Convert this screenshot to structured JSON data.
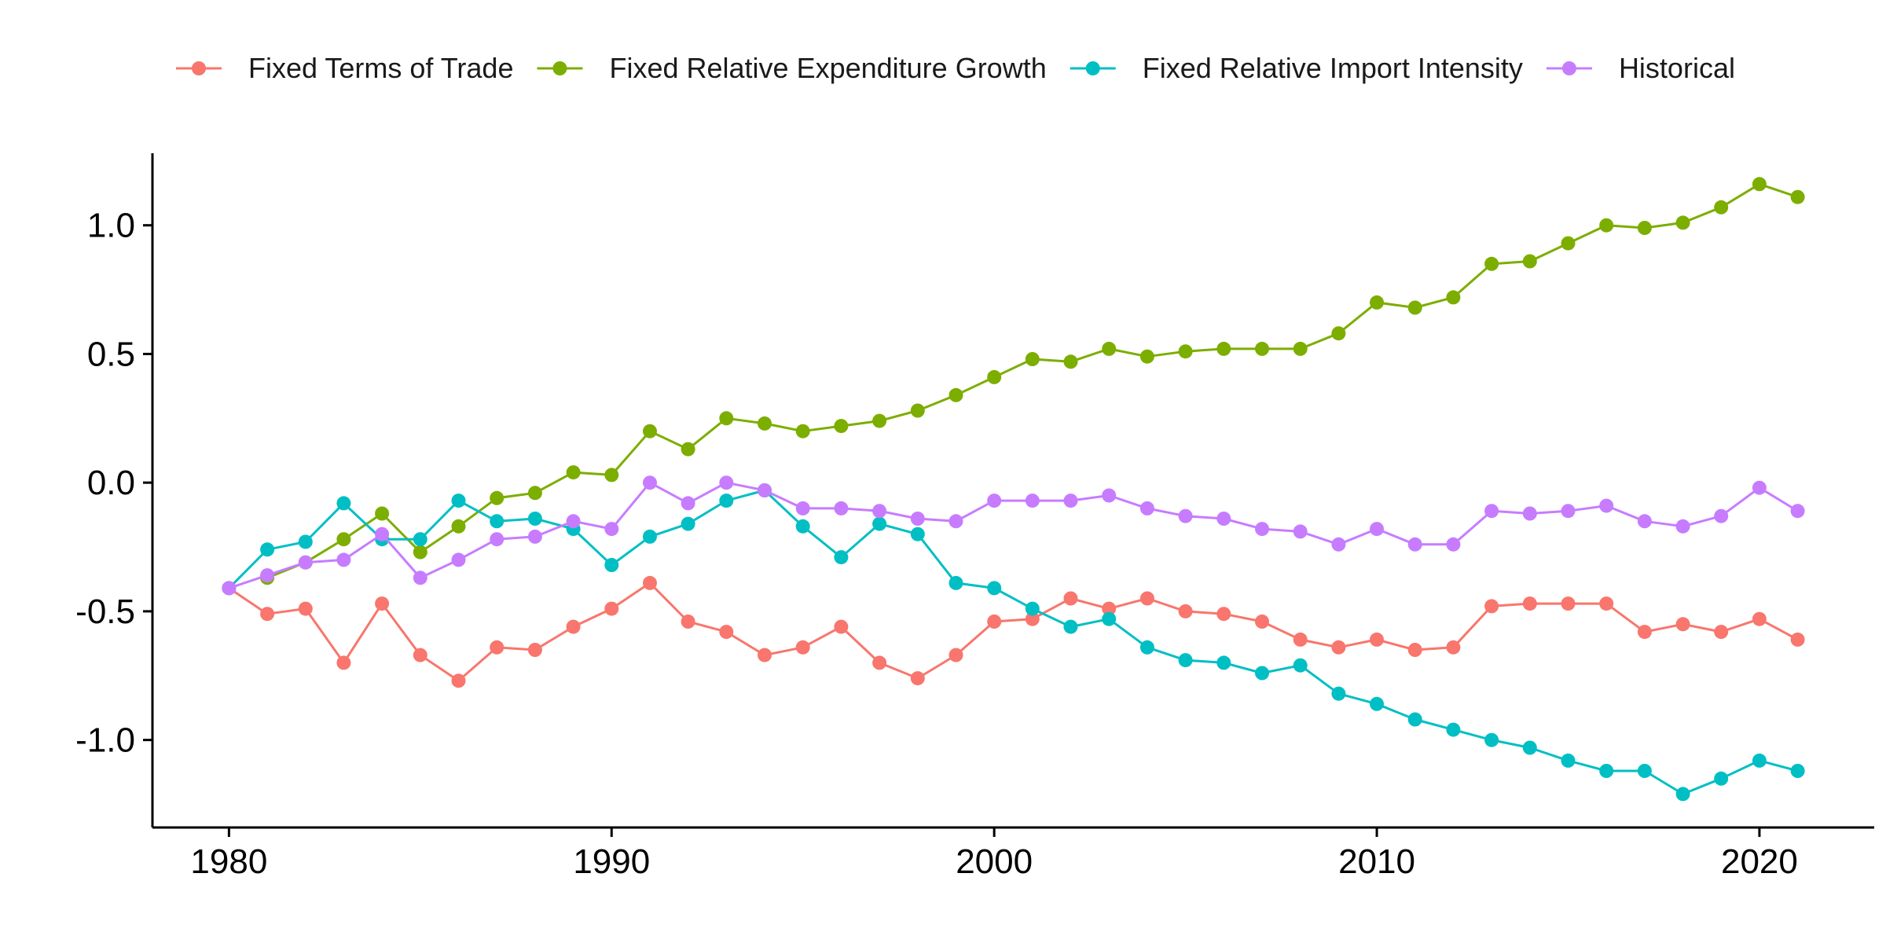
{
  "chart_data": {
    "type": "line",
    "title": "",
    "xlabel": "",
    "ylabel": "",
    "xlim": [
      1978,
      2023
    ],
    "ylim": [
      -1.34,
      1.28
    ],
    "grid": false,
    "legend_position": "top",
    "x_ticks": [
      1980,
      1990,
      2000,
      2010,
      2020
    ],
    "y_ticks": [
      -1.0,
      -0.5,
      0.0,
      0.5,
      1.0
    ],
    "x_tick_labels": [
      "1980",
      "1990",
      "2000",
      "2010",
      "2020"
    ],
    "y_tick_labels": [
      "-1.0",
      "-0.5",
      "0.0",
      "0.5",
      "1.0"
    ],
    "series": [
      {
        "name": "Fixed Terms of Trade",
        "color": "#F8766D",
        "x": [
          1980,
          1981,
          1982,
          1983,
          1984,
          1985,
          1986,
          1987,
          1988,
          1989,
          1990,
          1991,
          1992,
          1993,
          1994,
          1995,
          1996,
          1997,
          1998,
          1999,
          2000,
          2001,
          2002,
          2003,
          2004,
          2005,
          2006,
          2007,
          2008,
          2009,
          2010,
          2011,
          2012,
          2013,
          2014,
          2015,
          2016,
          2017,
          2018,
          2019,
          2020,
          2021
        ],
        "y": [
          -0.41,
          -0.51,
          -0.49,
          -0.7,
          -0.47,
          -0.67,
          -0.77,
          -0.64,
          -0.65,
          -0.56,
          -0.49,
          -0.39,
          -0.54,
          -0.58,
          -0.67,
          -0.64,
          -0.56,
          -0.7,
          -0.76,
          -0.67,
          -0.54,
          -0.53,
          -0.45,
          -0.49,
          -0.45,
          -0.5,
          -0.51,
          -0.54,
          -0.61,
          -0.64,
          -0.61,
          -0.65,
          -0.64,
          -0.48,
          -0.47,
          -0.47,
          -0.47,
          -0.58,
          -0.55,
          -0.58,
          -0.53,
          -0.61
        ]
      },
      {
        "name": "Fixed Relative Expenditure Growth",
        "color": "#7CAE00",
        "x": [
          1981,
          1982,
          1983,
          1984,
          1985,
          1986,
          1987,
          1988,
          1989,
          1990,
          1991,
          1992,
          1993,
          1994,
          1995,
          1996,
          1997,
          1998,
          1999,
          2000,
          2001,
          2002,
          2003,
          2004,
          2005,
          2006,
          2007,
          2008,
          2009,
          2010,
          2011,
          2012,
          2013,
          2014,
          2015,
          2016,
          2017,
          2018,
          2019,
          2020,
          2021
        ],
        "y": [
          -0.37,
          -0.31,
          -0.22,
          -0.12,
          -0.27,
          -0.17,
          -0.06,
          -0.04,
          0.04,
          0.03,
          0.2,
          0.13,
          0.25,
          0.23,
          0.2,
          0.22,
          0.24,
          0.28,
          0.34,
          0.41,
          0.48,
          0.47,
          0.52,
          0.49,
          0.51,
          0.52,
          0.52,
          0.52,
          0.58,
          0.7,
          0.68,
          0.72,
          0.85,
          0.86,
          0.93,
          1.0,
          0.99,
          1.01,
          1.07,
          1.16,
          1.11
        ]
      },
      {
        "name": "Fixed Relative Import Intensity",
        "color": "#00BFC4",
        "x": [
          1980,
          1981,
          1982,
          1983,
          1984,
          1985,
          1986,
          1987,
          1988,
          1989,
          1990,
          1991,
          1992,
          1993,
          1994,
          1995,
          1996,
          1997,
          1998,
          1999,
          2000,
          2001,
          2002,
          2003,
          2004,
          2005,
          2006,
          2007,
          2008,
          2009,
          2010,
          2011,
          2012,
          2013,
          2014,
          2015,
          2016,
          2017,
          2018,
          2019,
          2020,
          2021
        ],
        "y": [
          -0.41,
          -0.26,
          -0.23,
          -0.08,
          -0.22,
          -0.22,
          -0.07,
          -0.15,
          -0.14,
          -0.18,
          -0.32,
          -0.21,
          -0.16,
          -0.07,
          -0.03,
          -0.17,
          -0.29,
          -0.16,
          -0.2,
          -0.39,
          -0.41,
          -0.49,
          -0.56,
          -0.53,
          -0.64,
          -0.69,
          -0.7,
          -0.74,
          -0.71,
          -0.82,
          -0.86,
          -0.92,
          -0.96,
          -1.0,
          -1.03,
          -1.08,
          -1.12,
          -1.12,
          -1.21,
          -1.15,
          -1.08,
          -1.12
        ]
      },
      {
        "name": "Historical",
        "color": "#C77CFF",
        "x": [
          1980,
          1981,
          1982,
          1983,
          1984,
          1985,
          1986,
          1987,
          1988,
          1989,
          1990,
          1991,
          1992,
          1993,
          1994,
          1995,
          1996,
          1997,
          1998,
          1999,
          2000,
          2001,
          2002,
          2003,
          2004,
          2005,
          2006,
          2007,
          2008,
          2009,
          2010,
          2011,
          2012,
          2013,
          2014,
          2015,
          2016,
          2017,
          2018,
          2019,
          2020,
          2021
        ],
        "y": [
          -0.41,
          -0.36,
          -0.31,
          -0.3,
          -0.2,
          -0.37,
          -0.3,
          -0.22,
          -0.21,
          -0.15,
          -0.18,
          0.0,
          -0.08,
          0.0,
          -0.03,
          -0.1,
          -0.1,
          -0.11,
          -0.14,
          -0.15,
          -0.07,
          -0.07,
          -0.07,
          -0.05,
          -0.1,
          -0.13,
          -0.14,
          -0.18,
          -0.19,
          -0.24,
          -0.18,
          -0.24,
          -0.24,
          -0.11,
          -0.12,
          -0.11,
          -0.09,
          -0.15,
          -0.17,
          -0.13,
          -0.02,
          -0.11
        ]
      }
    ]
  }
}
